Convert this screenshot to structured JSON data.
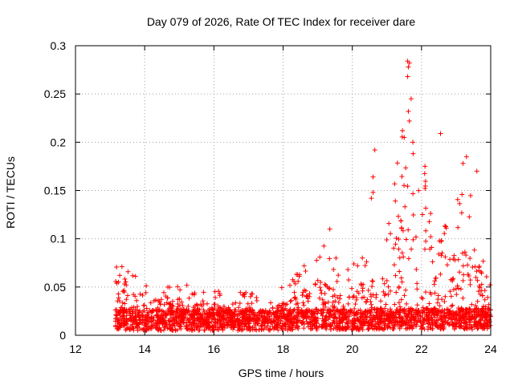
{
  "chart_data": {
    "type": "scatter",
    "title": "Day 079 of 2026, Rate Of TEC Index for receiver dare",
    "xlabel": "GPS time / hours",
    "ylabel": "ROTI / TECUs",
    "xlim": [
      12,
      24
    ],
    "ylim": [
      0,
      0.3
    ],
    "xticks": [
      "12",
      "14",
      "16",
      "18",
      "20",
      "22",
      "24"
    ],
    "yticks": [
      "0",
      "0.05",
      "0.1",
      "0.15",
      "0.2",
      "0.25",
      "0.3"
    ],
    "grid": true,
    "marker": "+",
    "color": "#ff0000",
    "x_range_of_data": [
      13.15,
      24.0
    ],
    "envelope": [
      {
        "t": 13.15,
        "base": 0.012,
        "max": 0.072
      },
      {
        "t": 13.5,
        "base": 0.013,
        "max": 0.075
      },
      {
        "t": 14.0,
        "base": 0.012,
        "max": 0.052
      },
      {
        "t": 14.5,
        "base": 0.012,
        "max": 0.06
      },
      {
        "t": 15.0,
        "base": 0.012,
        "max": 0.055
      },
      {
        "t": 15.5,
        "base": 0.012,
        "max": 0.05
      },
      {
        "t": 16.0,
        "base": 0.012,
        "max": 0.05
      },
      {
        "t": 16.5,
        "base": 0.012,
        "max": 0.045
      },
      {
        "t": 17.0,
        "base": 0.012,
        "max": 0.045
      },
      {
        "t": 17.5,
        "base": 0.012,
        "max": 0.042
      },
      {
        "t": 18.0,
        "base": 0.013,
        "max": 0.05
      },
      {
        "t": 18.5,
        "base": 0.013,
        "max": 0.07
      },
      {
        "t": 19.0,
        "base": 0.014,
        "max": 0.095
      },
      {
        "t": 19.5,
        "base": 0.014,
        "max": 0.09
      },
      {
        "t": 20.0,
        "base": 0.014,
        "max": 0.085
      },
      {
        "t": 20.5,
        "base": 0.014,
        "max": 0.09
      },
      {
        "t": 21.0,
        "base": 0.015,
        "max": 0.1
      },
      {
        "t": 21.3,
        "base": 0.015,
        "max": 0.2
      },
      {
        "t": 21.6,
        "base": 0.015,
        "max": 0.24
      },
      {
        "t": 22.0,
        "base": 0.015,
        "max": 0.18
      },
      {
        "t": 22.5,
        "base": 0.015,
        "max": 0.15
      },
      {
        "t": 23.0,
        "base": 0.015,
        "max": 0.145
      },
      {
        "t": 23.5,
        "base": 0.015,
        "max": 0.155
      },
      {
        "t": 24.0,
        "base": 0.015,
        "max": 0.05
      }
    ],
    "notable_points": [
      {
        "x": 20.65,
        "y": 0.192
      },
      {
        "x": 20.6,
        "y": 0.164
      },
      {
        "x": 20.6,
        "y": 0.148
      },
      {
        "x": 20.55,
        "y": 0.142
      },
      {
        "x": 19.35,
        "y": 0.11
      },
      {
        "x": 21.6,
        "y": 0.284
      },
      {
        "x": 21.65,
        "y": 0.282
      },
      {
        "x": 21.62,
        "y": 0.278
      },
      {
        "x": 21.6,
        "y": 0.268
      },
      {
        "x": 21.7,
        "y": 0.245
      },
      {
        "x": 21.62,
        "y": 0.232
      },
      {
        "x": 21.65,
        "y": 0.222
      },
      {
        "x": 21.45,
        "y": 0.212
      },
      {
        "x": 21.5,
        "y": 0.205
      },
      {
        "x": 21.75,
        "y": 0.2
      },
      {
        "x": 22.55,
        "y": 0.209
      },
      {
        "x": 23.3,
        "y": 0.185
      },
      {
        "x": 23.2,
        "y": 0.178
      },
      {
        "x": 23.6,
        "y": 0.17
      },
      {
        "x": 22.1,
        "y": 0.175
      }
    ]
  }
}
